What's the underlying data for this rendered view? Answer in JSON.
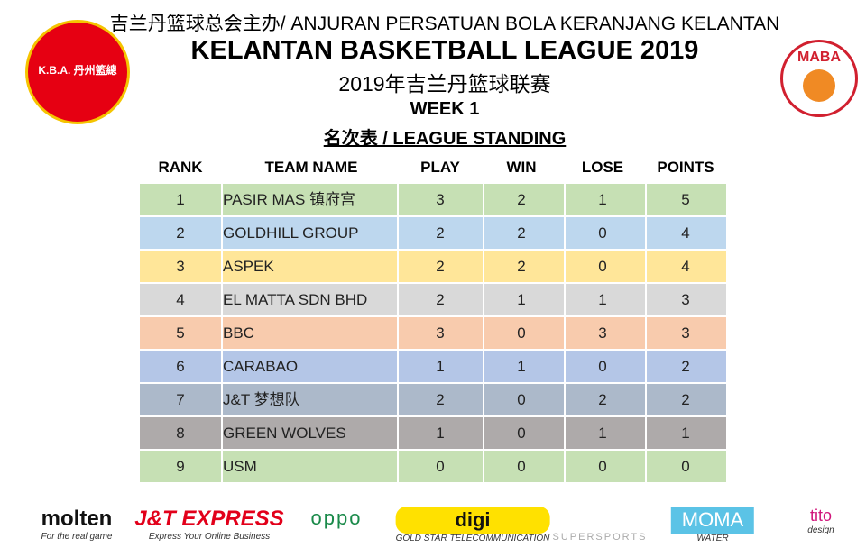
{
  "header": {
    "top_line": "吉兰丹篮球总会主办/ ANJURAN PERSATUAN BOLA KERANJANG KELANTAN",
    "title": "KELANTAN BASKETBALL LEAGUE 2019",
    "subtitle": "2019年吉兰丹篮球联赛",
    "week": "WEEK 1",
    "section": "名次表 / LEAGUE STANDING",
    "left_logo": "K.B.A. 丹州籃總",
    "right_logo": "MABA"
  },
  "table": {
    "columns": [
      "RANK",
      "TEAM NAME",
      "PLAY",
      "WIN",
      "LOSE",
      "POINTS"
    ],
    "rows": [
      {
        "cells": [
          "1",
          "PASIR MAS 镇府宫",
          "3",
          "2",
          "1",
          "5"
        ],
        "color": "#c6e0b4"
      },
      {
        "cells": [
          "2",
          "GOLDHILL GROUP",
          "2",
          "2",
          "0",
          "4"
        ],
        "color": "#bdd7ee"
      },
      {
        "cells": [
          "3",
          "ASPEK",
          "2",
          "2",
          "0",
          "4"
        ],
        "color": "#ffe699"
      },
      {
        "cells": [
          "4",
          "EL MATTA SDN BHD",
          "2",
          "1",
          "1",
          "3"
        ],
        "color": "#d9d9d9"
      },
      {
        "cells": [
          "5",
          "BBC",
          "3",
          "0",
          "3",
          "3"
        ],
        "color": "#f8cbad"
      },
      {
        "cells": [
          "6",
          "CARABAO",
          "1",
          "1",
          "0",
          "2"
        ],
        "color": "#b4c6e7"
      },
      {
        "cells": [
          "7",
          "J&T 梦想队",
          "2",
          "0",
          "2",
          "2"
        ],
        "color": "#acb9ca"
      },
      {
        "cells": [
          "8",
          "GREEN WOLVES",
          "1",
          "0",
          "1",
          "1"
        ],
        "color": "#aeaaaa"
      },
      {
        "cells": [
          "9",
          "USM",
          "0",
          "0",
          "0",
          "0"
        ],
        "color": "#c6e0b4"
      }
    ]
  },
  "sponsors": [
    {
      "name": "molten",
      "tagline": "For the real game"
    },
    {
      "name": "J&T EXPRESS",
      "tagline": "Express Your Online Business"
    },
    {
      "name": "oppo"
    },
    {
      "name": "digi",
      "tagline": "GOLD STAR TELECOMMUNICATION"
    },
    {
      "name": "SUPERSPORTS"
    },
    {
      "name": "MOMA",
      "tagline": "WATER"
    },
    {
      "name": "tito",
      "tagline": "design"
    }
  ]
}
